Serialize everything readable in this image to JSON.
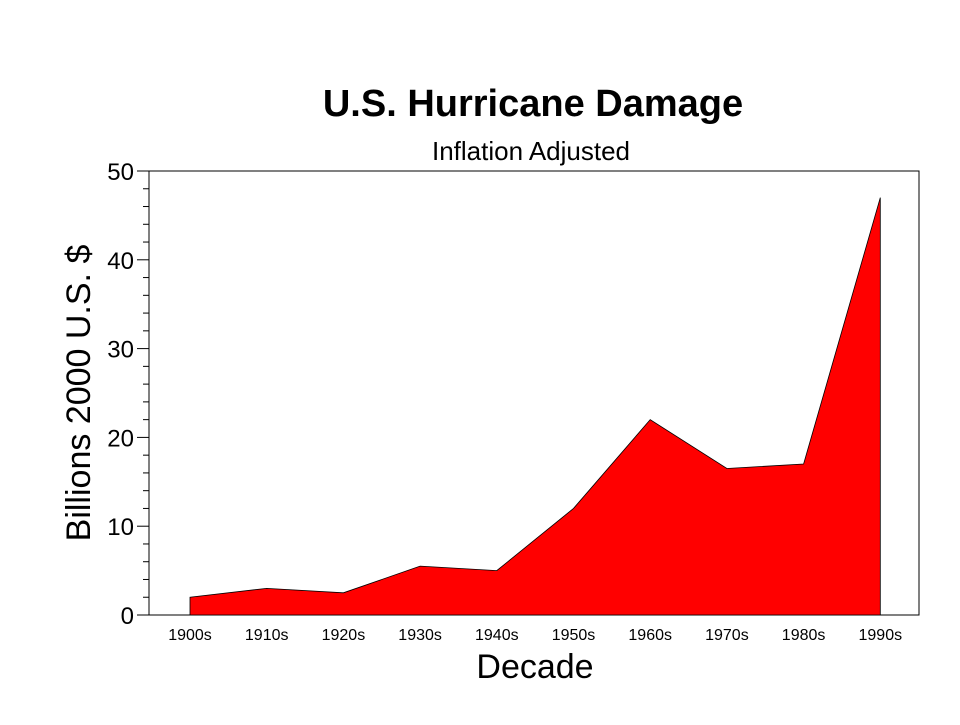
{
  "chart_data": {
    "type": "area",
    "title": "U.S. Hurricane Damage",
    "subtitle": "Inflation Adjusted",
    "xlabel": "Decade",
    "ylabel": "Billions 2000 U.S. $",
    "categories": [
      "1900s",
      "1910s",
      "1920s",
      "1930s",
      "1940s",
      "1950s",
      "1960s",
      "1970s",
      "1980s",
      "1990s"
    ],
    "series": [
      {
        "name": "",
        "values": [
          2.0,
          3.0,
          2.5,
          5.5,
          5.0,
          12.0,
          22.0,
          16.5,
          17.0,
          47.0
        ]
      }
    ],
    "ylim": [
      0,
      50
    ],
    "yticks": [
      0,
      10,
      20,
      30,
      40,
      50
    ],
    "fill_color": "#ff0000",
    "grid": false
  }
}
